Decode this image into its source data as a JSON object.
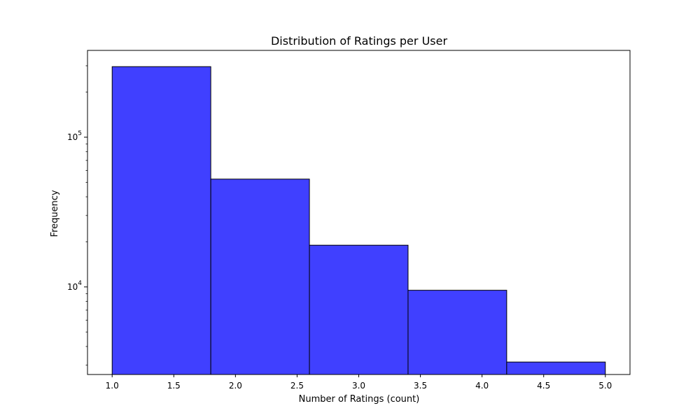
{
  "chart_data": {
    "type": "bar",
    "title": "Distribution of Ratings per User",
    "xlabel": "Number of Ratings (count)",
    "ylabel": "Frequency",
    "bins": [
      {
        "x0": 1.0,
        "x1": 1.8,
        "value": 296000
      },
      {
        "x0": 1.8,
        "x1": 2.6,
        "value": 52500
      },
      {
        "x0": 2.6,
        "x1": 3.4,
        "value": 19000
      },
      {
        "x0": 3.4,
        "x1": 4.2,
        "value": 9500
      },
      {
        "x0": 4.2,
        "x1": 5.0,
        "value": 3150
      }
    ],
    "xlim": [
      0.8,
      5.2
    ],
    "ylim": [
      2600,
      380000
    ],
    "yscale": "log",
    "x_ticks": [
      "1.0",
      "1.5",
      "2.0",
      "2.5",
      "3.0",
      "3.5",
      "4.0",
      "4.5",
      "5.0"
    ],
    "y_ticks": [
      {
        "base": "10",
        "exp": "4",
        "value": 10000
      },
      {
        "base": "10",
        "exp": "5",
        "value": 100000
      }
    ],
    "grid": false,
    "colors": {
      "bar_fill": "#4040ff",
      "bar_edge": "#000000",
      "axis": "#000000"
    }
  }
}
